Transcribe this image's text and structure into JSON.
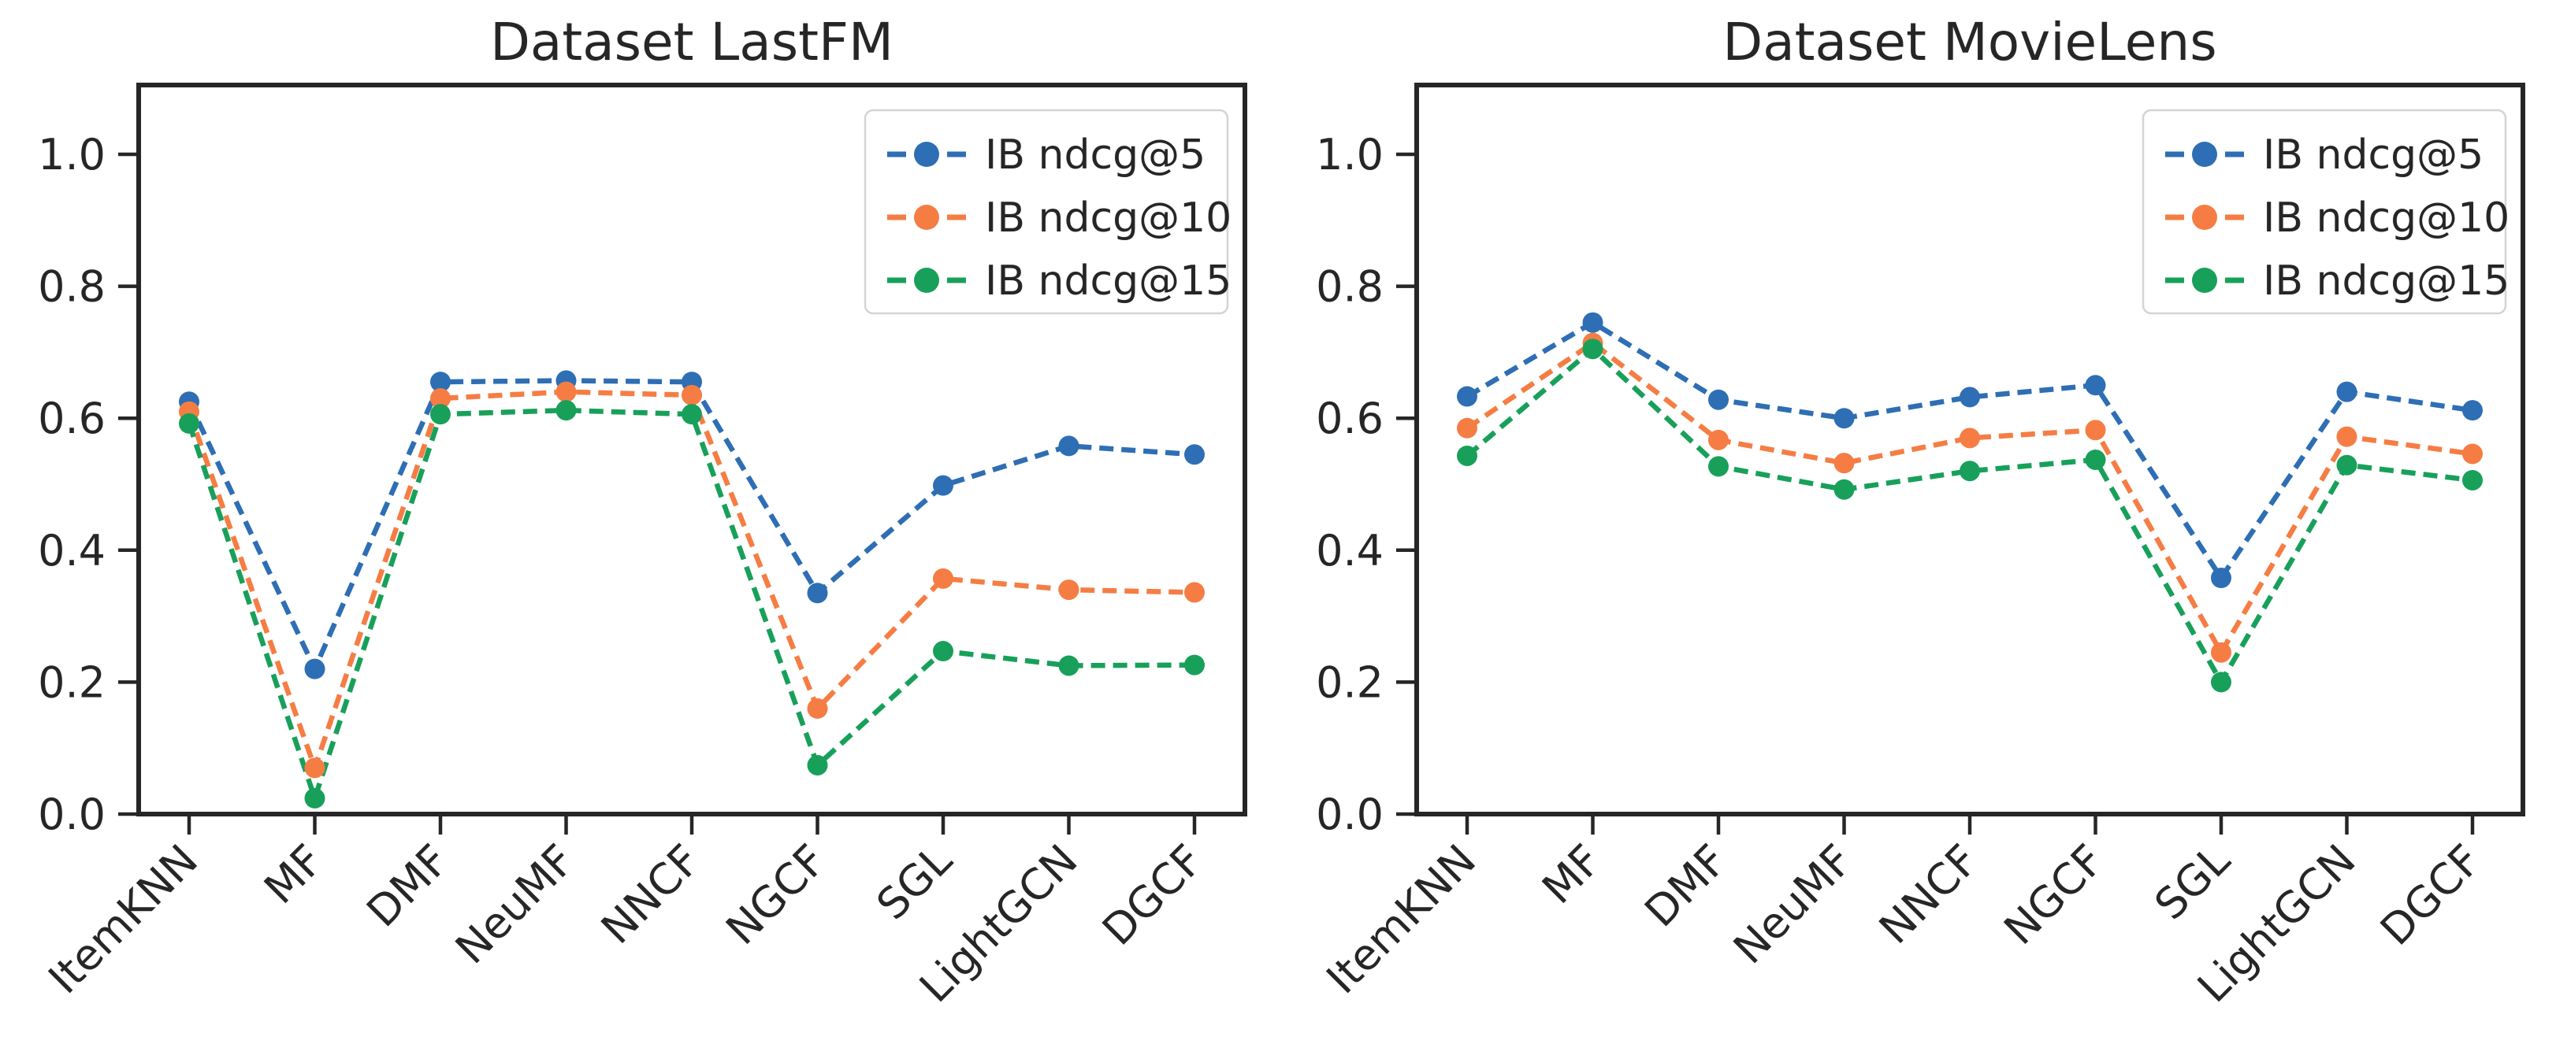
{
  "figure": {
    "background": "#ffffff",
    "axis_color": "#262626",
    "text_color": "#262626",
    "legend_border_color": "#d4d4d4",
    "legend_background": "#ffffff"
  },
  "chart_data": [
    {
      "type": "line",
      "title": "Dataset LastFM",
      "categories": [
        "ItemKNN",
        "MF",
        "DMF",
        "NeuMF",
        "NNCF",
        "NGCF",
        "SGL",
        "LightGCN",
        "DGCF"
      ],
      "series": [
        {
          "name": "IB ndcg@5",
          "color": "#2e6eb4",
          "values": [
            0.625,
            0.22,
            0.655,
            0.657,
            0.655,
            0.335,
            0.498,
            0.558,
            0.545
          ]
        },
        {
          "name": "IB ndcg@10",
          "color": "#f57d44",
          "values": [
            0.61,
            0.07,
            0.63,
            0.64,
            0.635,
            0.16,
            0.357,
            0.34,
            0.336
          ]
        },
        {
          "name": "IB ndcg@15",
          "color": "#18a05a",
          "values": [
            0.592,
            0.024,
            0.606,
            0.612,
            0.606,
            0.074,
            0.247,
            0.225,
            0.226
          ]
        }
      ],
      "yticks": [
        0.0,
        0.2,
        0.4,
        0.6,
        0.8,
        1.0
      ],
      "ytick_labels": [
        "0.0",
        "0.2",
        "0.4",
        "0.6",
        "0.8",
        "1.0"
      ],
      "ylim": [
        0.0,
        1.105
      ],
      "grid": false,
      "line_style": "dashed",
      "marker": "circle",
      "legend_position": "upper right"
    },
    {
      "type": "line",
      "title": "Dataset MovieLens",
      "categories": [
        "ItemKNN",
        "MF",
        "DMF",
        "NeuMF",
        "NNCF",
        "NGCF",
        "SGL",
        "LightGCN",
        "DGCF"
      ],
      "series": [
        {
          "name": "IB ndcg@5",
          "color": "#2e6eb4",
          "values": [
            0.633,
            0.745,
            0.628,
            0.6,
            0.632,
            0.65,
            0.358,
            0.64,
            0.612
          ]
        },
        {
          "name": "IB ndcg@10",
          "color": "#f57d44",
          "values": [
            0.585,
            0.714,
            0.567,
            0.532,
            0.57,
            0.582,
            0.245,
            0.572,
            0.546
          ]
        },
        {
          "name": "IB ndcg@15",
          "color": "#18a05a",
          "values": [
            0.543,
            0.705,
            0.527,
            0.492,
            0.52,
            0.537,
            0.2,
            0.529,
            0.506
          ]
        }
      ],
      "yticks": [
        0.0,
        0.2,
        0.4,
        0.6,
        0.8,
        1.0
      ],
      "ytick_labels": [
        "0.0",
        "0.2",
        "0.4",
        "0.6",
        "0.8",
        "1.0"
      ],
      "ylim": [
        0.0,
        1.105
      ],
      "grid": false,
      "line_style": "dashed",
      "marker": "circle",
      "legend_position": "upper right"
    }
  ]
}
